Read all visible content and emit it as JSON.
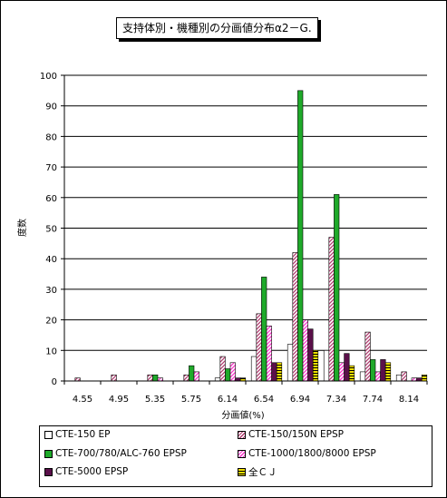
{
  "chart_data": {
    "type": "bar",
    "title": "支持体別・機種別の分画値分布α2－G.",
    "xlabel": "分画値(%)",
    "ylabel": "度数",
    "ylim": [
      0,
      100
    ],
    "yticks": [
      0,
      10,
      20,
      30,
      40,
      50,
      60,
      70,
      80,
      90,
      100
    ],
    "grid": true,
    "legend_position": "bottom",
    "categories": [
      "4.55",
      "4.95",
      "5.35",
      "5.75",
      "6.14",
      "6.54",
      "6.94",
      "7.34",
      "7.74",
      "8.14"
    ],
    "series": [
      {
        "name": "CTE-150 EP",
        "color": "#ffffff",
        "pattern": "white",
        "values": [
          0,
          0,
          0,
          0,
          1,
          8,
          12,
          10,
          3,
          2
        ]
      },
      {
        "name": "CTE-150/150N EPSP",
        "color": "#b03a6e",
        "pattern": "diagonal",
        "values": [
          1,
          2,
          2,
          2,
          8,
          22,
          42,
          47,
          16,
          3
        ]
      },
      {
        "name": "CTE-700/780/ALC-760 EPSP",
        "color": "#1faa2a",
        "pattern": "solid",
        "values": [
          0,
          0,
          2,
          5,
          4,
          34,
          95,
          61,
          7,
          0
        ]
      },
      {
        "name": "CTE-1000/1800/8000 EPSP",
        "color": "#ff33cc",
        "pattern": "diagonal-light",
        "values": [
          0,
          0,
          1,
          3,
          6,
          18,
          20,
          6,
          3,
          1
        ]
      },
      {
        "name": "CTE-5000 EPSP",
        "color": "#5a0f4a",
        "pattern": "solid",
        "values": [
          0,
          0,
          0,
          0,
          1,
          6,
          17,
          9,
          7,
          1
        ]
      },
      {
        "name": "全ＣＪ",
        "color": "#f2e000",
        "pattern": "hstripe",
        "values": [
          0,
          0,
          0,
          0,
          1,
          6,
          10,
          5,
          6,
          2
        ]
      }
    ]
  }
}
